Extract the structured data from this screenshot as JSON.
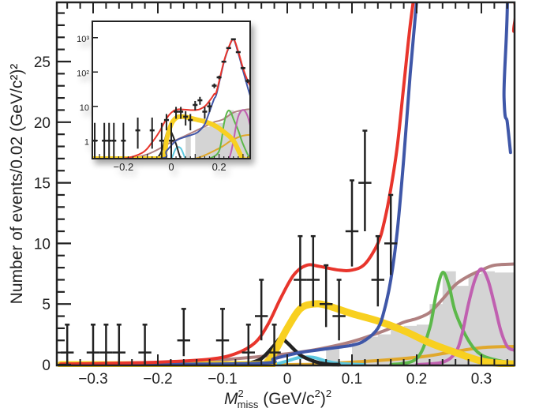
{
  "chart_data": {
    "type": "line",
    "title": "",
    "xlabel": "M_miss^2 (GeV/c^2)^2",
    "xlabel_parts": {
      "main": "M",
      "sup": "2",
      "sub": "miss",
      "unit": " (GeV/c",
      "unit_sup": "2",
      "unit_end": ")",
      "unit_end_sup": "2"
    },
    "ylabel": "Number of events/0.02 (GeV/c²)²",
    "xlim": [
      -0.35,
      0.35
    ],
    "ylim": [
      0,
      29.5
    ],
    "grid": false,
    "legend": "none",
    "x_ticks": [
      {
        "value": -0.3,
        "label": "−0.3"
      },
      {
        "value": -0.2,
        "label": "−0.2"
      },
      {
        "value": -0.1,
        "label": "−0.1"
      },
      {
        "value": 0,
        "label": "0"
      },
      {
        "value": 0.1,
        "label": "0.1"
      },
      {
        "value": 0.2,
        "label": "0.2"
      },
      {
        "value": 0.3,
        "label": "0.3"
      }
    ],
    "y_ticks": [
      {
        "value": 0,
        "label": "0"
      },
      {
        "value": 5,
        "label": "5"
      },
      {
        "value": 10,
        "label": "10"
      },
      {
        "value": 15,
        "label": "15"
      },
      {
        "value": 20,
        "label": "20"
      },
      {
        "value": 25,
        "label": "25"
      }
    ],
    "data_points": [
      {
        "x": -0.34,
        "y": 1,
        "lo": 0,
        "hi": 3.3
      },
      {
        "x": -0.3,
        "y": 1,
        "lo": 0,
        "hi": 3.3
      },
      {
        "x": -0.28,
        "y": 1,
        "lo": 0,
        "hi": 3.3
      },
      {
        "x": -0.26,
        "y": 1,
        "lo": 0,
        "hi": 3.3
      },
      {
        "x": -0.22,
        "y": 1,
        "lo": 0,
        "hi": 3.3
      },
      {
        "x": -0.16,
        "y": 2,
        "lo": 0.7,
        "hi": 4.6
      },
      {
        "x": -0.1,
        "y": 2,
        "lo": 0.7,
        "hi": 4.6
      },
      {
        "x": -0.06,
        "y": 1,
        "lo": 0,
        "hi": 3.3
      },
      {
        "x": -0.04,
        "y": 4,
        "lo": 2.0,
        "hi": 7.0
      },
      {
        "x": -0.02,
        "y": 1,
        "lo": 0,
        "hi": 3.3
      },
      {
        "x": 0.02,
        "y": 7,
        "lo": 4.8,
        "hi": 10.6
      },
      {
        "x": 0.04,
        "y": 7,
        "lo": 4.8,
        "hi": 10.6
      },
      {
        "x": 0.06,
        "y": 5,
        "lo": 3.1,
        "hi": 8.2
      },
      {
        "x": 0.08,
        "y": 4,
        "lo": 2.0,
        "hi": 7.0
      },
      {
        "x": 0.1,
        "y": 11,
        "lo": 8.1,
        "hi": 15.2
      },
      {
        "x": 0.12,
        "y": 15,
        "lo": 11.0,
        "hi": 19.3
      },
      {
        "x": 0.14,
        "y": 7,
        "lo": 4.8,
        "hi": 10.6
      },
      {
        "x": 0.16,
        "y": 10,
        "lo": 7.4,
        "hi": 14.0
      }
    ],
    "series": [
      {
        "name": "total-fit",
        "color": "#e8352c",
        "x": [
          -0.35,
          -0.3,
          -0.2,
          -0.12,
          -0.08,
          -0.05,
          -0.03,
          -0.01,
          0.01,
          0.03,
          0.05,
          0.08,
          0.1,
          0.12,
          0.14,
          0.15,
          0.16,
          0.17,
          0.18,
          0.19,
          0.2,
          0.21,
          0.34,
          0.35
        ],
        "y": [
          0.05,
          0.08,
          0.2,
          0.45,
          0.9,
          1.8,
          3.3,
          5.5,
          7.4,
          8.2,
          8.1,
          7.8,
          7.8,
          8.3,
          10.0,
          11.8,
          14.5,
          18.0,
          23.0,
          28.0,
          32.0,
          36.0,
          31.0,
          27.5
        ]
      },
      {
        "name": "dominant-signal",
        "color": "#3f57a8",
        "x": [
          -0.35,
          -0.05,
          -0.02,
          0.02,
          0.06,
          0.1,
          0.12,
          0.14,
          0.15,
          0.16,
          0.17,
          0.18,
          0.19,
          0.2,
          0.21,
          0.33,
          0.335,
          0.34,
          0.345
        ],
        "y": [
          0.0,
          0.1,
          0.5,
          1.0,
          1.3,
          1.6,
          2.0,
          3.0,
          4.5,
          7.0,
          11.0,
          17.0,
          24.0,
          30.0,
          36.0,
          35.0,
          22.0,
          20.0,
          17.5
        ]
      },
      {
        "name": "signal-yellow",
        "color": "#f8d020",
        "x": [
          -0.35,
          -0.05,
          -0.03,
          -0.02,
          0.0,
          0.02,
          0.04,
          0.06,
          0.1,
          0.14,
          0.18,
          0.22,
          0.26,
          0.3,
          0.33,
          0.35
        ],
        "y": [
          0.0,
          0.0,
          0.3,
          1.0,
          3.0,
          4.6,
          5.0,
          4.9,
          4.2,
          3.6,
          2.8,
          1.8,
          1.0,
          0.3,
          0.1,
          0.05
        ]
      },
      {
        "name": "black-component",
        "color": "#222222",
        "x": [
          -0.06,
          -0.04,
          -0.02,
          -0.01,
          0.0,
          0.02,
          0.04,
          0.06,
          0.08
        ],
        "y": [
          0.1,
          0.5,
          1.6,
          2.2,
          1.8,
          0.8,
          0.3,
          0.05,
          0.0
        ]
      },
      {
        "name": "cyan-component",
        "color": "#5cc8e0",
        "x": [
          -0.02,
          0.0,
          0.02,
          0.04,
          0.06,
          0.08,
          0.12
        ],
        "y": [
          0.0,
          0.3,
          0.6,
          0.6,
          0.3,
          0.1,
          0.0
        ]
      },
      {
        "name": "brown-background",
        "color": "#b08080",
        "x": [
          -0.35,
          -0.2,
          -0.1,
          0.0,
          0.05,
          0.1,
          0.15,
          0.18,
          0.2,
          0.22,
          0.24,
          0.26,
          0.28,
          0.3,
          0.32,
          0.35
        ],
        "y": [
          0.0,
          0.1,
          0.4,
          0.9,
          1.3,
          1.9,
          2.8,
          3.5,
          3.8,
          4.3,
          5.4,
          6.6,
          7.3,
          7.8,
          8.2,
          8.3
        ]
      },
      {
        "name": "green-peak",
        "color": "#5cb84a",
        "x": [
          0.16,
          0.2,
          0.22,
          0.23,
          0.24,
          0.25,
          0.26,
          0.28,
          0.3,
          0.33,
          0.35
        ],
        "y": [
          0.0,
          0.5,
          3.0,
          5.8,
          7.6,
          6.5,
          4.3,
          2.0,
          0.8,
          0.3,
          0.2
        ]
      },
      {
        "name": "magenta-peak",
        "color": "#c060b0",
        "x": [
          0.2,
          0.24,
          0.26,
          0.27,
          0.28,
          0.29,
          0.3,
          0.31,
          0.32,
          0.33,
          0.34,
          0.35
        ],
        "y": [
          0.0,
          0.2,
          1.0,
          2.5,
          5.0,
          7.0,
          7.9,
          7.0,
          5.0,
          2.8,
          1.5,
          1.2
        ]
      },
      {
        "name": "orange-background",
        "color": "#e0a82c",
        "x": [
          -0.35,
          0.0,
          0.1,
          0.2,
          0.25,
          0.3,
          0.35
        ],
        "y": [
          0.0,
          0.0,
          0.2,
          0.6,
          1.0,
          1.4,
          1.5
        ]
      }
    ],
    "histogram": {
      "name": "grey-background-histogram",
      "color": "#d4d4d4",
      "bins": [
        {
          "x0": 0.06,
          "x1": 0.08,
          "y": 1.4
        },
        {
          "x0": 0.08,
          "x1": 0.1,
          "y": 0.3
        },
        {
          "x0": 0.1,
          "x1": 0.12,
          "y": 1.8
        },
        {
          "x0": 0.12,
          "x1": 0.14,
          "y": 2.3
        },
        {
          "x0": 0.14,
          "x1": 0.16,
          "y": 2.5
        },
        {
          "x0": 0.16,
          "x1": 0.18,
          "y": 2.9
        },
        {
          "x0": 0.18,
          "x1": 0.2,
          "y": 3.2
        },
        {
          "x0": 0.2,
          "x1": 0.22,
          "y": 3.3
        },
        {
          "x0": 0.22,
          "x1": 0.24,
          "y": 5.0
        },
        {
          "x0": 0.24,
          "x1": 0.26,
          "y": 7.7
        },
        {
          "x0": 0.26,
          "x1": 0.28,
          "y": 6.5
        },
        {
          "x0": 0.28,
          "x1": 0.3,
          "y": 7.5
        },
        {
          "x0": 0.3,
          "x1": 0.32,
          "y": 7.7
        },
        {
          "x0": 0.32,
          "x1": 0.35,
          "y": 7.6
        }
      ]
    },
    "inset": {
      "type": "line",
      "yscale": "log",
      "xlim": [
        -0.33,
        0.33
      ],
      "ylim_log": [
        0.3,
        3000
      ],
      "x_ticks": [
        {
          "value": -0.2,
          "label": "−0.2"
        },
        {
          "value": 0,
          "label": "0"
        },
        {
          "value": 0.2,
          "label": "0.2"
        }
      ],
      "y_ticks": [
        {
          "value": 1,
          "label": "1"
        },
        {
          "value": 10,
          "label": "10"
        },
        {
          "value": 100,
          "label": "10²"
        },
        {
          "value": 1000,
          "label": "10³"
        }
      ],
      "data_points": [
        {
          "x": -0.32,
          "y": 1
        },
        {
          "x": -0.28,
          "y": 1
        },
        {
          "x": -0.26,
          "y": 1
        },
        {
          "x": -0.24,
          "y": 1
        },
        {
          "x": -0.2,
          "y": 1
        },
        {
          "x": -0.14,
          "y": 2
        },
        {
          "x": -0.08,
          "y": 2
        },
        {
          "x": -0.04,
          "y": 1
        },
        {
          "x": -0.02,
          "y": 4
        },
        {
          "x": 0.0,
          "y": 1
        },
        {
          "x": 0.02,
          "y": 7
        },
        {
          "x": 0.04,
          "y": 7
        },
        {
          "x": 0.06,
          "y": 5
        },
        {
          "x": 0.08,
          "y": 4
        },
        {
          "x": 0.1,
          "y": 11
        },
        {
          "x": 0.12,
          "y": 15
        },
        {
          "x": 0.14,
          "y": 7
        },
        {
          "x": 0.16,
          "y": 10
        },
        {
          "x": 0.18,
          "y": 40
        },
        {
          "x": 0.2,
          "y": 70
        },
        {
          "x": 0.22,
          "y": 200
        },
        {
          "x": 0.24,
          "y": 500
        },
        {
          "x": 0.26,
          "y": 900
        },
        {
          "x": 0.28,
          "y": 380
        },
        {
          "x": 0.3,
          "y": 130
        },
        {
          "x": 0.32,
          "y": 55
        },
        {
          "x": 0.34,
          "y": 30
        }
      ]
    }
  }
}
